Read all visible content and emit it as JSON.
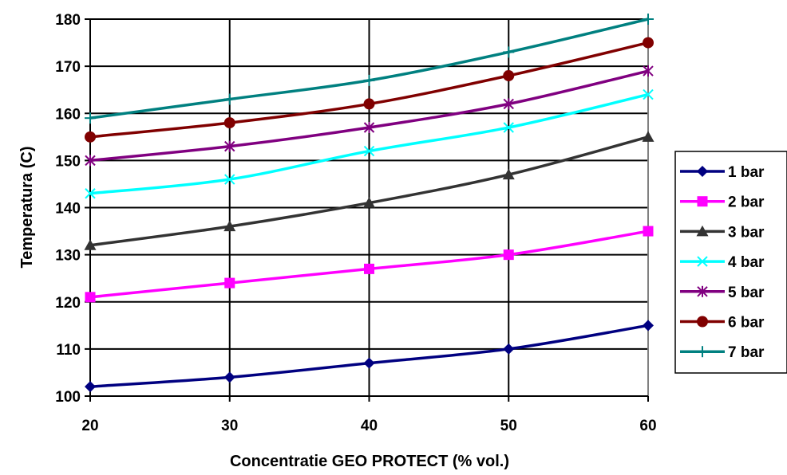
{
  "chart_data": {
    "type": "line",
    "xlabel": "Concentratie GEO PROTECT (% vol.)",
    "ylabel": "Temperatura (C)",
    "x": [
      20,
      30,
      40,
      50,
      60
    ],
    "xlim": [
      20,
      60
    ],
    "ylim": [
      100,
      180
    ],
    "xticks": [
      "20",
      "30",
      "40",
      "50",
      "60"
    ],
    "yticks": [
      "100",
      "110",
      "120",
      "130",
      "140",
      "150",
      "160",
      "170",
      "180"
    ],
    "grid": true,
    "legend_position": "right",
    "series": [
      {
        "name": "1 bar",
        "color": "#000080",
        "marker": "diamond",
        "values": [
          102,
          104,
          107,
          110,
          115
        ]
      },
      {
        "name": "2 bar",
        "color": "#FF00FF",
        "marker": "square",
        "values": [
          121,
          124,
          127,
          130,
          135
        ]
      },
      {
        "name": "3 bar",
        "color": "#333333",
        "marker": "triangle",
        "values": [
          132,
          136,
          141,
          147,
          155
        ]
      },
      {
        "name": "4 bar",
        "color": "#00FFFF",
        "marker": "x",
        "values": [
          143,
          146,
          152,
          157,
          164
        ]
      },
      {
        "name": "5 bar",
        "color": "#800080",
        "marker": "star",
        "values": [
          150,
          153,
          157,
          162,
          169
        ]
      },
      {
        "name": "6 bar",
        "color": "#800000",
        "marker": "circle",
        "values": [
          155,
          158,
          162,
          168,
          175
        ]
      },
      {
        "name": "7 bar",
        "color": "#008080",
        "marker": "plus",
        "values": [
          159,
          163,
          167,
          173,
          180
        ]
      }
    ]
  }
}
